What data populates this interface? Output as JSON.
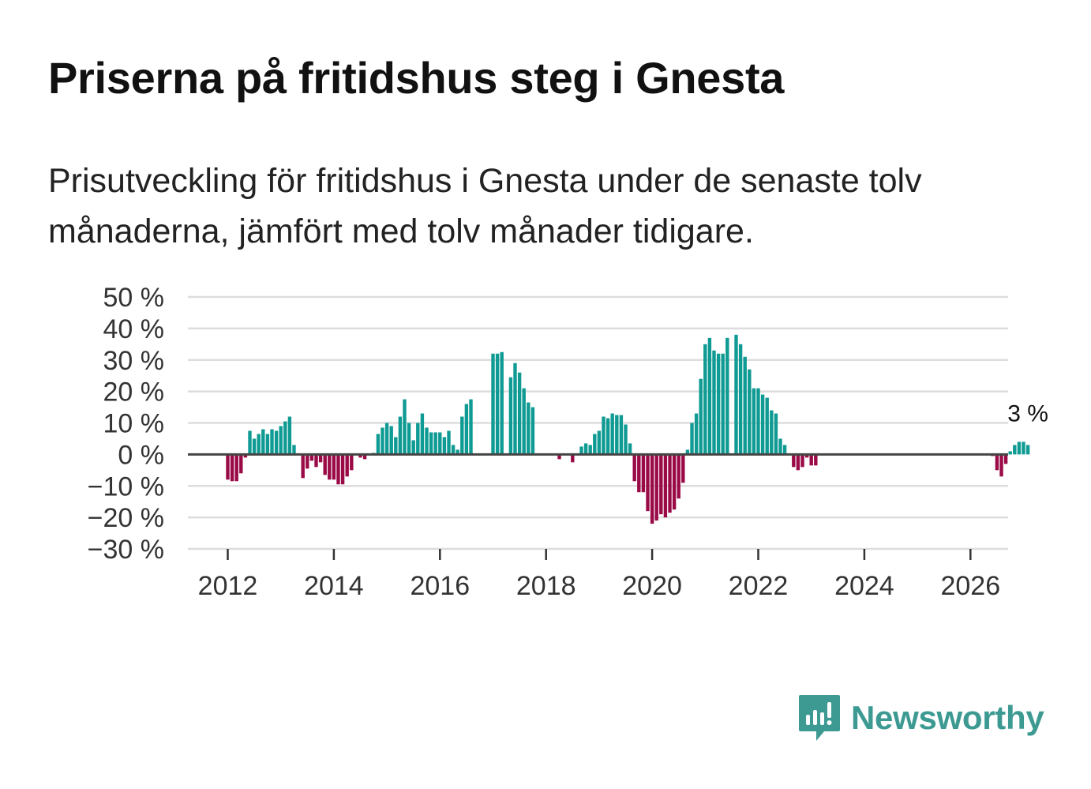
{
  "title": "Priserna på fritidshus steg i Gnesta",
  "subtitle": "Prisutveckling för fritidshus i Gnesta under de senaste tolv månaderna, jämfört med tolv månader tidigare.",
  "brand": {
    "name": "Newsworthy",
    "color": "#3d9a92",
    "icon": "newsworthy-logo-icon"
  },
  "colors": {
    "positive": "#0f9b93",
    "negative": "#9a0a47",
    "grid": "#dddddd",
    "zero_line": "#444444"
  },
  "chart_data": {
    "type": "bar",
    "title": "Priserna på fritidshus steg i Gnesta",
    "xlabel": "",
    "ylabel": "",
    "ylim": [
      -30,
      50
    ],
    "yticks": [
      50,
      40,
      30,
      20,
      10,
      0,
      -10,
      -20,
      -30
    ],
    "ytick_labels": [
      "50 %",
      "40 %",
      "30 %",
      "20 %",
      "10 %",
      "0 %",
      "−10 %",
      "−20 %",
      "−30 %"
    ],
    "xticks": [
      2012,
      2014,
      2016,
      2018,
      2020,
      2022,
      2024,
      2026
    ],
    "xtick_labels": [
      "2012",
      "2014",
      "2016",
      "2018",
      "2020",
      "2022",
      "2024",
      "2026"
    ],
    "x_start": 2012,
    "x_step_months": 1,
    "values": [
      -8,
      -8.5,
      -8.5,
      -6,
      -1,
      7.5,
      5,
      6.5,
      8,
      6.5,
      8,
      7.5,
      9,
      10.5,
      12,
      3,
      0,
      -7.5,
      -4.5,
      -2,
      -4,
      -2.5,
      -6.5,
      -8,
      -8,
      -9.5,
      -9.5,
      -7,
      -5,
      0,
      -1,
      -1.5,
      0,
      0.5,
      6.5,
      8.5,
      10,
      9,
      5.5,
      12,
      17.5,
      10,
      4.5,
      10,
      13,
      8.5,
      7,
      7,
      7,
      5.5,
      7.5,
      3,
      1.5,
      12,
      16,
      17.5,
      0,
      0,
      0,
      0,
      32,
      32,
      32.5,
      0,
      24.5,
      29,
      26,
      21,
      16.5,
      15,
      0,
      0,
      0,
      0,
      0,
      -1.5,
      0,
      0,
      -2.5,
      0,
      2.5,
      3.5,
      3,
      6.5,
      7.5,
      12,
      11.5,
      13,
      12.5,
      12.5,
      9.5,
      3.5,
      -8.5,
      -12,
      -12,
      -18,
      -22,
      -21,
      -19,
      -20,
      -18.5,
      -17.5,
      -14,
      -9,
      1.5,
      10,
      13,
      24,
      35,
      37,
      33,
      32,
      32,
      37,
      0,
      38,
      35,
      31,
      27,
      21,
      21,
      19,
      18,
      14,
      13,
      5,
      3,
      0,
      -4,
      -5,
      -4,
      -1,
      -3.5,
      -3.5,
      0,
      0,
      0,
      0,
      0,
      0,
      0,
      0,
      0,
      0,
      0,
      0,
      0,
      0,
      0,
      0,
      0,
      0,
      0,
      0,
      0,
      0,
      0,
      0,
      0,
      0,
      0,
      0,
      0,
      0,
      0,
      0,
      0,
      0,
      0,
      0,
      0,
      0,
      0,
      -0.5,
      -5,
      -7,
      -3,
      1,
      3,
      4,
      4,
      3
    ],
    "annotation": {
      "label": "3 %",
      "value": 3
    }
  }
}
